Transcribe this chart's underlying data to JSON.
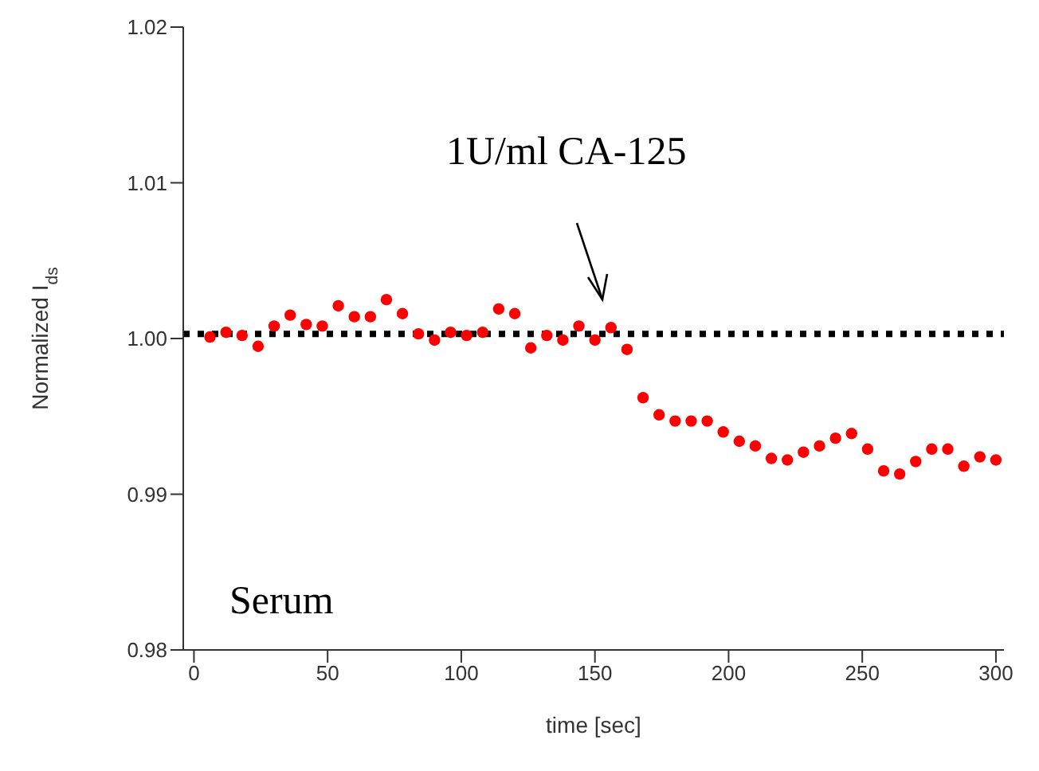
{
  "chart_data": {
    "type": "scatter",
    "xlabel": "time [sec]",
    "ylabel": "Normalized I$_{ds}$",
    "x": [
      6,
      12,
      18,
      24,
      30,
      36,
      42,
      48,
      54,
      60,
      66,
      72,
      78,
      84,
      90,
      96,
      102,
      108,
      114,
      120,
      126,
      132,
      138,
      144,
      150,
      156,
      162,
      168,
      174,
      180,
      186,
      192,
      198,
      204,
      210,
      216,
      222,
      228,
      234,
      240,
      246,
      252,
      258,
      264,
      270,
      276,
      282,
      288,
      294,
      300
    ],
    "series": [
      {
        "color": "#ff0000",
        "values": [
          1.0001,
          1.0004,
          1.0002,
          0.9995,
          1.0008,
          1.0015,
          1.0009,
          1.0008,
          1.0021,
          1.0014,
          1.0014,
          1.0025,
          1.0016,
          1.0003,
          0.9999,
          1.0004,
          1.0002,
          1.0004,
          1.0019,
          1.0016,
          0.9994,
          1.0002,
          0.9999,
          1.0008,
          0.9999,
          1.0007,
          0.9993,
          0.9962,
          0.9951,
          0.9947,
          0.9947,
          0.9947,
          0.994,
          0.9934,
          0.9931,
          0.9923,
          0.9922,
          0.9927,
          0.9931,
          0.9936,
          0.9939,
          0.9929,
          0.9915,
          0.9913,
          0.9921,
          0.9929,
          0.9929,
          0.9918,
          0.9924,
          0.9922
        ]
      }
    ],
    "marker": "circle",
    "xlim": [
      -4,
      303
    ],
    "xticks": [
      0,
      50,
      100,
      150,
      200,
      250,
      300
    ],
    "ylim": [
      0.98,
      1.02
    ],
    "yticks": [
      {
        "value": 0.98,
        "label": "0.98"
      },
      {
        "value": 0.99,
        "label": "0.99"
      },
      {
        "value": 1.0,
        "label": "1.00"
      },
      {
        "value": 1.01,
        "label": "1.01"
      },
      {
        "value": 1.02,
        "label": "1.02"
      }
    ],
    "ref_lines": [
      {
        "axis": "y",
        "value": 1.0003,
        "color": "#000000",
        "line_style": "dotted"
      }
    ],
    "annotations": [
      "1U/ml CA-125",
      "Serum"
    ],
    "grid": false,
    "legend": false
  }
}
